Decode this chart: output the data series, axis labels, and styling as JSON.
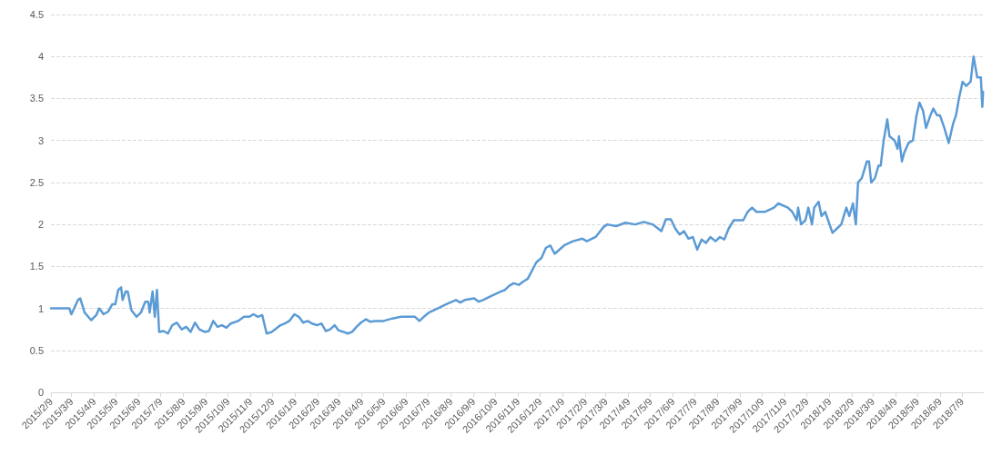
{
  "chart_data": {
    "type": "line",
    "x": [
      "2015-02-09",
      "2015-03-06",
      "2015-03-09",
      "2015-03-18",
      "2015-03-21",
      "2015-03-27",
      "2015-04-05",
      "2015-04-12",
      "2015-04-16",
      "2015-04-22",
      "2015-04-28",
      "2015-05-04",
      "2015-05-08",
      "2015-05-12",
      "2015-05-16",
      "2015-05-18",
      "2015-05-22",
      "2015-05-25",
      "2015-05-30",
      "2015-06-06",
      "2015-06-12",
      "2015-06-18",
      "2015-06-22",
      "2015-06-24",
      "2015-06-28",
      "2015-07-01",
      "2015-07-04",
      "2015-07-07",
      "2015-07-13",
      "2015-07-19",
      "2015-07-25",
      "2015-07-31",
      "2015-08-07",
      "2015-08-13",
      "2015-08-19",
      "2015-08-25",
      "2015-08-31",
      "2015-09-07",
      "2015-09-13",
      "2015-09-19",
      "2015-09-25",
      "2015-10-01",
      "2015-10-07",
      "2015-10-13",
      "2015-10-23",
      "2015-10-31",
      "2015-11-07",
      "2015-11-13",
      "2015-11-19",
      "2015-11-25",
      "2015-12-01",
      "2015-12-08",
      "2015-12-20",
      "2015-12-26",
      "2016-01-01",
      "2016-01-08",
      "2016-01-14",
      "2016-01-20",
      "2016-01-26",
      "2016-02-01",
      "2016-02-08",
      "2016-02-14",
      "2016-02-20",
      "2016-02-26",
      "2016-03-03",
      "2016-03-08",
      "2016-03-15",
      "2016-03-21",
      "2016-03-27",
      "2016-04-02",
      "2016-04-08",
      "2016-04-15",
      "2016-04-21",
      "2016-04-27",
      "2016-05-09",
      "2016-05-21",
      "2016-06-02",
      "2016-06-21",
      "2016-06-27",
      "2016-07-03",
      "2016-07-10",
      "2016-07-22",
      "2016-08-03",
      "2016-08-16",
      "2016-08-22",
      "2016-08-28",
      "2016-09-10",
      "2016-09-16",
      "2016-09-22",
      "2016-10-04",
      "2016-10-16",
      "2016-10-22",
      "2016-10-28",
      "2016-11-03",
      "2016-11-10",
      "2016-11-16",
      "2016-11-22",
      "2016-11-28",
      "2016-12-04",
      "2016-12-11",
      "2016-12-17",
      "2016-12-23",
      "2016-12-29",
      "2017-01-11",
      "2017-01-23",
      "2017-02-05",
      "2017-02-11",
      "2017-02-23",
      "2017-03-06",
      "2017-03-11",
      "2017-03-23",
      "2017-04-05",
      "2017-04-18",
      "2017-04-30",
      "2017-05-12",
      "2017-05-24",
      "2017-05-30",
      "2017-06-06",
      "2017-06-12",
      "2017-06-18",
      "2017-06-24",
      "2017-06-30",
      "2017-07-06",
      "2017-07-12",
      "2017-07-18",
      "2017-07-24",
      "2017-07-30",
      "2017-08-06",
      "2017-08-12",
      "2017-08-18",
      "2017-08-24",
      "2017-08-31",
      "2017-09-13",
      "2017-09-19",
      "2017-09-25",
      "2017-10-01",
      "2017-10-13",
      "2017-10-25",
      "2017-10-31",
      "2017-11-13",
      "2017-11-19",
      "2017-11-25",
      "2017-11-27",
      "2017-12-01",
      "2017-12-07",
      "2017-12-11",
      "2017-12-16",
      "2017-12-19",
      "2017-12-25",
      "2017-12-29",
      "2018-01-03",
      "2018-01-07",
      "2018-01-13",
      "2018-01-19",
      "2018-01-25",
      "2018-02-01",
      "2018-02-05",
      "2018-02-10",
      "2018-02-14",
      "2018-02-17",
      "2018-02-22",
      "2018-03-01",
      "2018-03-04",
      "2018-03-07",
      "2018-03-12",
      "2018-03-17",
      "2018-03-20",
      "2018-03-24",
      "2018-03-29",
      "2018-04-01",
      "2018-04-08",
      "2018-04-12",
      "2018-04-14",
      "2018-04-18",
      "2018-04-21",
      "2018-04-27",
      "2018-05-03",
      "2018-05-08",
      "2018-05-12",
      "2018-05-17",
      "2018-05-21",
      "2018-05-27",
      "2018-05-31",
      "2018-06-05",
      "2018-06-09",
      "2018-06-15",
      "2018-06-21",
      "2018-06-27",
      "2018-07-01",
      "2018-07-05",
      "2018-07-10",
      "2018-07-15",
      "2018-07-21",
      "2018-07-25",
      "2018-07-30",
      "2018-08-04",
      "2018-08-06",
      "2018-08-07"
    ],
    "series": [
      {
        "color": "#5b9bd5",
        "values": [
          1.0,
          1.0,
          0.93,
          1.1,
          1.12,
          0.95,
          0.86,
          0.92,
          1.0,
          0.93,
          0.96,
          1.05,
          1.05,
          1.22,
          1.25,
          1.1,
          1.2,
          1.2,
          0.98,
          0.9,
          0.95,
          1.08,
          1.08,
          0.95,
          1.2,
          0.9,
          1.22,
          0.72,
          0.73,
          0.7,
          0.8,
          0.83,
          0.75,
          0.78,
          0.72,
          0.83,
          0.75,
          0.72,
          0.73,
          0.85,
          0.78,
          0.8,
          0.77,
          0.82,
          0.85,
          0.9,
          0.9,
          0.93,
          0.9,
          0.92,
          0.7,
          0.72,
          0.8,
          0.82,
          0.85,
          0.93,
          0.9,
          0.83,
          0.85,
          0.82,
          0.8,
          0.82,
          0.73,
          0.75,
          0.8,
          0.74,
          0.72,
          0.7,
          0.72,
          0.78,
          0.83,
          0.87,
          0.84,
          0.85,
          0.85,
          0.88,
          0.9,
          0.9,
          0.85,
          0.9,
          0.95,
          1.0,
          1.05,
          1.1,
          1.07,
          1.1,
          1.12,
          1.08,
          1.1,
          1.15,
          1.2,
          1.22,
          1.27,
          1.3,
          1.28,
          1.32,
          1.35,
          1.45,
          1.55,
          1.6,
          1.72,
          1.75,
          1.65,
          1.75,
          1.8,
          1.83,
          1.8,
          1.85,
          1.97,
          2.0,
          1.98,
          2.02,
          2.0,
          2.03,
          2.0,
          1.92,
          2.06,
          2.06,
          1.95,
          1.88,
          1.92,
          1.83,
          1.85,
          1.7,
          1.82,
          1.78,
          1.85,
          1.8,
          1.85,
          1.82,
          1.95,
          2.05,
          2.05,
          2.15,
          2.2,
          2.15,
          2.15,
          2.2,
          2.25,
          2.2,
          2.15,
          2.05,
          2.2,
          2.0,
          2.05,
          2.2,
          2.0,
          2.2,
          2.27,
          2.1,
          2.15,
          2.05,
          1.9,
          1.95,
          2.0,
          2.2,
          2.1,
          2.25,
          2.0,
          2.5,
          2.55,
          2.75,
          2.75,
          2.5,
          2.55,
          2.7,
          2.7,
          3.0,
          3.25,
          3.05,
          3.0,
          2.9,
          3.05,
          2.75,
          2.85,
          2.97,
          3.0,
          3.3,
          3.45,
          3.35,
          3.15,
          3.3,
          3.38,
          3.3,
          3.3,
          3.15,
          2.97,
          3.2,
          3.3,
          3.5,
          3.7,
          3.65,
          3.7,
          4.0,
          3.75,
          3.75,
          3.4,
          3.58
        ]
      }
    ],
    "xlim": [
      "2015-02-09",
      "2018-08-08"
    ],
    "xticks": [
      {
        "value": "2015-02-09",
        "label": "2015/2/9"
      },
      {
        "value": "2015-03-09",
        "label": "2015/3/9"
      },
      {
        "value": "2015-04-09",
        "label": "2015/4/9"
      },
      {
        "value": "2015-05-09",
        "label": "2015/5/9"
      },
      {
        "value": "2015-06-09",
        "label": "2015/6/9"
      },
      {
        "value": "2015-07-09",
        "label": "2015/7/9"
      },
      {
        "value": "2015-08-09",
        "label": "2015/8/9"
      },
      {
        "value": "2015-09-09",
        "label": "2015/9/9"
      },
      {
        "value": "2015-10-09",
        "label": "2015/10/9"
      },
      {
        "value": "2015-11-09",
        "label": "2015/11/9"
      },
      {
        "value": "2015-12-09",
        "label": "2015/12/9"
      },
      {
        "value": "2016-01-09",
        "label": "2016/1/9"
      },
      {
        "value": "2016-02-09",
        "label": "2016/2/9"
      },
      {
        "value": "2016-03-09",
        "label": "2016/3/9"
      },
      {
        "value": "2016-04-09",
        "label": "2016/4/9"
      },
      {
        "value": "2016-05-09",
        "label": "2016/5/9"
      },
      {
        "value": "2016-06-09",
        "label": "2016/6/9"
      },
      {
        "value": "2016-07-09",
        "label": "2016/7/9"
      },
      {
        "value": "2016-08-09",
        "label": "2016/8/9"
      },
      {
        "value": "2016-09-09",
        "label": "2016/9/9"
      },
      {
        "value": "2016-10-09",
        "label": "2016/10/9"
      },
      {
        "value": "2016-11-09",
        "label": "2016/11/9"
      },
      {
        "value": "2016-12-09",
        "label": "2016/12/9"
      },
      {
        "value": "2017-01-09",
        "label": "2017/1/9"
      },
      {
        "value": "2017-02-09",
        "label": "2017/2/9"
      },
      {
        "value": "2017-03-09",
        "label": "2017/3/9"
      },
      {
        "value": "2017-04-09",
        "label": "2017/4/9"
      },
      {
        "value": "2017-05-09",
        "label": "2017/5/9"
      },
      {
        "value": "2017-06-09",
        "label": "2017/6/9"
      },
      {
        "value": "2017-07-09",
        "label": "2017/7/9"
      },
      {
        "value": "2017-08-09",
        "label": "2017/8/9"
      },
      {
        "value": "2017-09-09",
        "label": "2017/9/9"
      },
      {
        "value": "2017-10-09",
        "label": "2017/10/9"
      },
      {
        "value": "2017-11-09",
        "label": "2017/11/9"
      },
      {
        "value": "2017-12-09",
        "label": "2017/12/9"
      },
      {
        "value": "2018-01-09",
        "label": "2018/1/9"
      },
      {
        "value": "2018-02-09",
        "label": "2018/2/9"
      },
      {
        "value": "2018-03-09",
        "label": "2018/3/9"
      },
      {
        "value": "2018-04-09",
        "label": "2018/4/9"
      },
      {
        "value": "2018-05-09",
        "label": "2018/5/9"
      },
      {
        "value": "2018-06-09",
        "label": "2018/6/9"
      },
      {
        "value": "2018-07-09",
        "label": "2018/7/9"
      }
    ],
    "ylim": [
      0,
      4.5
    ],
    "yticks": [
      0,
      0.5,
      1,
      1.5,
      2,
      2.5,
      3,
      3.5,
      4,
      4.5
    ],
    "grid": "y",
    "marker": "none",
    "line_style": "solid"
  }
}
